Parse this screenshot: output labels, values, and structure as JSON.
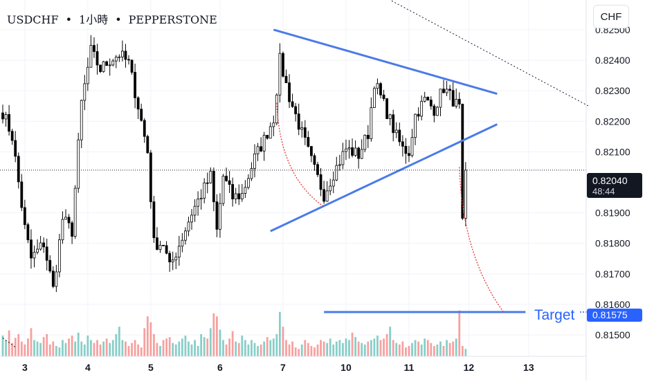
{
  "header": {
    "symbol": "USDCHF",
    "separator": "•",
    "interval": "1小時",
    "exchange": "PEPPERSTONE"
  },
  "currency_button": "CHF",
  "last_price": {
    "value": "0.82040",
    "countdown": "48:44"
  },
  "target": {
    "label": "Target",
    "value": "0.81575"
  },
  "colors": {
    "up": "#26a69a",
    "down": "#ef5350",
    "candle": "#000000",
    "trendline": "#4a7be8",
    "projection": "#e53935",
    "tag_blue": "#2962ff"
  },
  "chart_data": {
    "type": "candlestick",
    "price_axis": {
      "labels": [
        "0.82500",
        "0.82400",
        "0.82300",
        "0.82200",
        "0.82100",
        "0.81900",
        "0.81800",
        "0.81700",
        "0.81600",
        "0.81500"
      ],
      "ylim": [
        0.8143,
        0.8257
      ]
    },
    "time_axis": {
      "labels": [
        "3",
        "4",
        "5",
        "6",
        "7",
        "10",
        "11",
        "12",
        "13"
      ],
      "label_index": [
        7,
        27,
        47,
        69,
        89,
        109,
        129,
        148,
        167
      ]
    },
    "bars_visible": 148,
    "current_price": 0.8204,
    "target_price": 0.81575,
    "volume_max": 100,
    "volume": [
      28,
      22,
      35,
      18,
      25,
      30,
      20,
      16,
      24,
      38,
      22,
      20,
      18,
      26,
      30,
      16,
      20,
      14,
      12,
      22,
      18,
      24,
      28,
      20,
      32,
      20,
      16,
      28,
      22,
      18,
      22,
      16,
      20,
      24,
      18,
      22,
      30,
      40,
      22,
      20,
      14,
      18,
      22,
      16,
      12,
      38,
      54,
      46,
      30,
      18,
      14,
      22,
      24,
      26,
      18,
      16,
      20,
      24,
      28,
      20,
      16,
      22,
      14,
      30,
      26,
      24,
      38,
      58,
      54,
      36,
      22,
      16,
      24,
      34,
      20,
      18,
      28,
      22,
      16,
      22,
      18,
      14,
      16,
      20,
      26,
      22,
      24,
      30,
      60,
      40,
      22,
      16,
      20,
      12,
      10,
      16,
      22,
      18,
      14,
      12,
      16,
      22,
      20,
      18,
      24,
      16,
      20,
      22,
      18,
      24,
      22,
      32,
      26,
      20,
      18,
      16,
      20,
      22,
      24,
      28,
      22,
      24,
      30,
      40,
      22,
      18,
      16,
      20,
      12,
      14,
      18,
      22,
      20,
      16,
      24,
      22,
      18,
      14,
      16,
      20,
      14,
      22,
      18,
      20,
      24,
      62,
      14,
      10
    ],
    "annotations": {
      "triangle_upper": {
        "from": [
          86,
          0.825
        ],
        "to": [
          157,
          0.8229
        ]
      },
      "triangle_lower": {
        "from": [
          85,
          0.8184
        ],
        "to": [
          157,
          0.8219
        ]
      },
      "long_trend": {
        "from": [
          108,
          0.8268
        ],
        "to": [
          186,
          0.8225
        ]
      },
      "lower_left_trend": {
        "from": [
          0,
          0.8149
        ],
        "to": [
          4,
          0.8146
        ]
      },
      "target_line": {
        "from": [
          102,
          0.81575
        ],
        "to": [
          166,
          0.81575
        ]
      },
      "projection_1": {
        "from": [
          87,
          0.8226
        ],
        "ctrl": [
          88,
          0.8202
        ],
        "to": [
          102,
          0.8192
        ]
      },
      "projection_2": {
        "from": [
          145,
          0.8205
        ],
        "ctrl": [
          146,
          0.8176
        ],
        "to": [
          159,
          0.81575
        ]
      }
    }
  }
}
